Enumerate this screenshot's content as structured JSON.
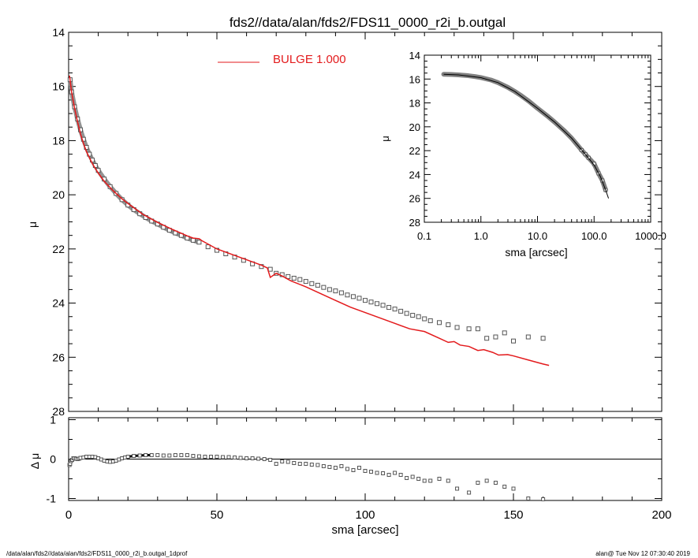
{
  "title": "fds2//data/alan/fds2/FDS11_0000_r2i_b.outgal",
  "footer_left": "/data/alan/fds2//data/alan/fds2/FDS11_0000_r2i_b.outgal_1dprof",
  "footer_right": "alan@  Tue Nov 12 07:30:40 2019",
  "colors": {
    "model": "#e31a1c",
    "data": "#808080",
    "axes": "#000000"
  },
  "chart_data": [
    {
      "type": "scatter",
      "panel": "main",
      "xlabel": "",
      "ylabel": "μ",
      "xlim": [
        0,
        200
      ],
      "ylim": [
        28,
        14
      ],
      "y_ticks": [
        "14",
        "16",
        "18",
        "20",
        "22",
        "24",
        "26",
        "28"
      ],
      "legend": {
        "label": "BULGE  1.000",
        "color": "#e31a1c",
        "position": "top-center"
      },
      "series": [
        {
          "name": "",
          "role": "data",
          "marker": "square",
          "x": [
            0.5,
            1,
            2,
            3,
            4,
            5,
            6,
            7,
            8,
            9,
            10,
            12,
            14,
            16,
            18,
            20,
            22,
            24,
            26,
            28,
            30,
            32,
            34,
            36,
            38,
            40,
            42,
            44,
            47,
            50,
            53,
            56,
            59,
            62,
            65,
            68,
            70,
            72,
            74,
            76,
            78,
            80,
            82,
            84,
            86,
            88,
            90,
            92,
            94,
            96,
            98,
            100,
            102,
            104,
            106,
            108,
            110,
            112,
            114,
            116,
            118,
            120,
            122,
            125,
            128,
            131,
            135,
            138,
            141,
            144,
            147,
            150,
            155,
            160
          ],
          "y": [
            15.75,
            16.2,
            16.75,
            17.2,
            17.6,
            17.95,
            18.25,
            18.5,
            18.72,
            18.92,
            19.1,
            19.42,
            19.7,
            19.95,
            20.18,
            20.38,
            20.55,
            20.7,
            20.84,
            20.97,
            21.08,
            21.2,
            21.31,
            21.41,
            21.5,
            21.6,
            21.68,
            21.75,
            21.92,
            22.05,
            22.18,
            22.3,
            22.42,
            22.55,
            22.65,
            22.75,
            22.9,
            22.95,
            23.02,
            23.08,
            23.13,
            23.2,
            23.28,
            23.34,
            23.42,
            23.5,
            23.55,
            23.62,
            23.7,
            23.76,
            23.82,
            23.9,
            23.96,
            24.02,
            24.08,
            24.16,
            24.22,
            24.3,
            24.38,
            24.45,
            24.5,
            24.58,
            24.65,
            24.72,
            24.8,
            24.9,
            24.95,
            24.95,
            25.3,
            25.25,
            25.1,
            25.4,
            25.25,
            25.3
          ]
        },
        {
          "name": "BULGE  1.000",
          "role": "model",
          "marker": "line",
          "x": [
            0.3,
            1,
            2,
            3,
            4,
            5,
            6,
            8,
            10,
            12,
            15,
            18,
            20,
            25,
            30,
            35,
            40,
            42,
            44,
            45,
            50,
            55,
            60,
            65,
            67,
            68,
            70,
            72,
            75,
            80,
            85,
            90,
            95,
            100,
            105,
            110,
            115,
            120,
            125,
            128,
            130,
            132,
            135,
            138,
            140,
            143,
            145,
            148,
            150,
            155,
            160,
            162
          ],
          "y": [
            15.6,
            16.2,
            16.8,
            17.3,
            17.75,
            18.1,
            18.4,
            18.85,
            19.2,
            19.5,
            19.85,
            20.15,
            20.32,
            20.72,
            21.02,
            21.28,
            21.52,
            21.6,
            21.62,
            21.7,
            22.0,
            22.2,
            22.4,
            22.6,
            22.7,
            23.05,
            22.9,
            23.0,
            23.18,
            23.4,
            23.65,
            23.9,
            24.15,
            24.35,
            24.55,
            24.75,
            24.95,
            25.05,
            25.3,
            25.45,
            25.42,
            25.55,
            25.6,
            25.75,
            25.72,
            25.82,
            25.92,
            25.9,
            25.95,
            26.1,
            26.25,
            26.3
          ]
        }
      ]
    },
    {
      "type": "scatter",
      "panel": "residual",
      "xlabel": "sma [arcsec]",
      "ylabel": "Δ μ",
      "xlim": [
        0,
        200
      ],
      "ylim": [
        -1.05,
        1.05
      ],
      "x_ticks": [
        "0",
        "50",
        "100",
        "150",
        "200"
      ],
      "y_ticks": [
        "1",
        "0",
        "-1"
      ],
      "reference_line": 0,
      "series": [
        {
          "name": "",
          "role": "residual",
          "marker": "square",
          "x": [
            0.3,
            0.5,
            0.8,
            1.2,
            1.6,
            2,
            2.5,
            3,
            3.5,
            4,
            5,
            6,
            7,
            8,
            9,
            10,
            11,
            12,
            13,
            14,
            15,
            16,
            17,
            18,
            19,
            20,
            22,
            24,
            26,
            28,
            30,
            32,
            34,
            36,
            38,
            40,
            42,
            44,
            46,
            48,
            50,
            52,
            54,
            56,
            58,
            60,
            62,
            64,
            66,
            68,
            70,
            72,
            74,
            76,
            78,
            80,
            82,
            84,
            86,
            88,
            90,
            92,
            94,
            96,
            98,
            100,
            102,
            104,
            106,
            108,
            110,
            112,
            114,
            116,
            118,
            120,
            122,
            125,
            128,
            131,
            135,
            138,
            141,
            144,
            147,
            150,
            155,
            160
          ],
          "y": [
            -0.15,
            -0.12,
            -0.05,
            -0.02,
            0.02,
            0.02,
            0.01,
            0.0,
            0.01,
            0.03,
            0.04,
            0.06,
            0.06,
            0.06,
            0.05,
            0.02,
            -0.01,
            -0.04,
            -0.06,
            -0.07,
            -0.06,
            -0.04,
            -0.01,
            0.02,
            0.04,
            0.06,
            0.08,
            0.09,
            0.1,
            0.1,
            0.1,
            0.09,
            0.09,
            0.1,
            0.1,
            0.1,
            0.08,
            0.07,
            0.06,
            0.06,
            0.06,
            0.05,
            0.05,
            0.04,
            0.03,
            0.02,
            0.02,
            0.01,
            0.0,
            -0.02,
            -0.12,
            -0.06,
            -0.07,
            -0.1,
            -0.12,
            -0.12,
            -0.14,
            -0.15,
            -0.18,
            -0.2,
            -0.22,
            -0.18,
            -0.25,
            -0.28,
            -0.22,
            -0.3,
            -0.32,
            -0.35,
            -0.36,
            -0.4,
            -0.35,
            -0.4,
            -0.48,
            -0.45,
            -0.5,
            -0.55,
            -0.55,
            -0.5,
            -0.55,
            -0.75,
            -0.85,
            -0.6,
            -0.55,
            -0.6,
            -0.7,
            -0.75,
            -1.0,
            -1.02
          ]
        }
      ]
    },
    {
      "type": "scatter",
      "panel": "inset",
      "xlabel": "sma [arcsec]",
      "ylabel": "μ",
      "x_scale": "log",
      "xlim": [
        0.1,
        1000
      ],
      "ylim": [
        28,
        14
      ],
      "x_ticks": [
        "0.1",
        "1.0",
        "10.0",
        "100.0",
        "1000.0"
      ],
      "y_ticks": [
        "14",
        "16",
        "18",
        "20",
        "22",
        "24",
        "26",
        "28"
      ],
      "series": [
        {
          "name": "",
          "role": "data",
          "marker": "thick-line",
          "x": [
            0.22,
            0.3,
            0.4,
            0.6,
            0.8,
            1,
            1.5,
            2,
            3,
            4,
            5,
            7,
            10,
            15,
            20,
            30,
            40,
            50,
            60,
            70,
            80,
            100,
            120,
            140,
            160
          ],
          "y": [
            15.6,
            15.62,
            15.65,
            15.72,
            15.8,
            15.88,
            16.08,
            16.3,
            16.7,
            17.05,
            17.35,
            17.85,
            18.45,
            19.1,
            19.6,
            20.35,
            20.95,
            21.5,
            21.95,
            22.3,
            22.6,
            23.1,
            23.9,
            24.5,
            25.3
          ]
        },
        {
          "name": "",
          "role": "model",
          "marker": "line",
          "x": [
            0.22,
            0.4,
            1,
            2,
            4,
            10,
            20,
            40,
            70,
            100,
            130,
            160,
            180
          ],
          "y": [
            15.6,
            15.65,
            15.88,
            16.3,
            17.05,
            18.45,
            19.6,
            20.95,
            22.3,
            23.2,
            24.2,
            25.3,
            26.0
          ]
        }
      ]
    }
  ]
}
